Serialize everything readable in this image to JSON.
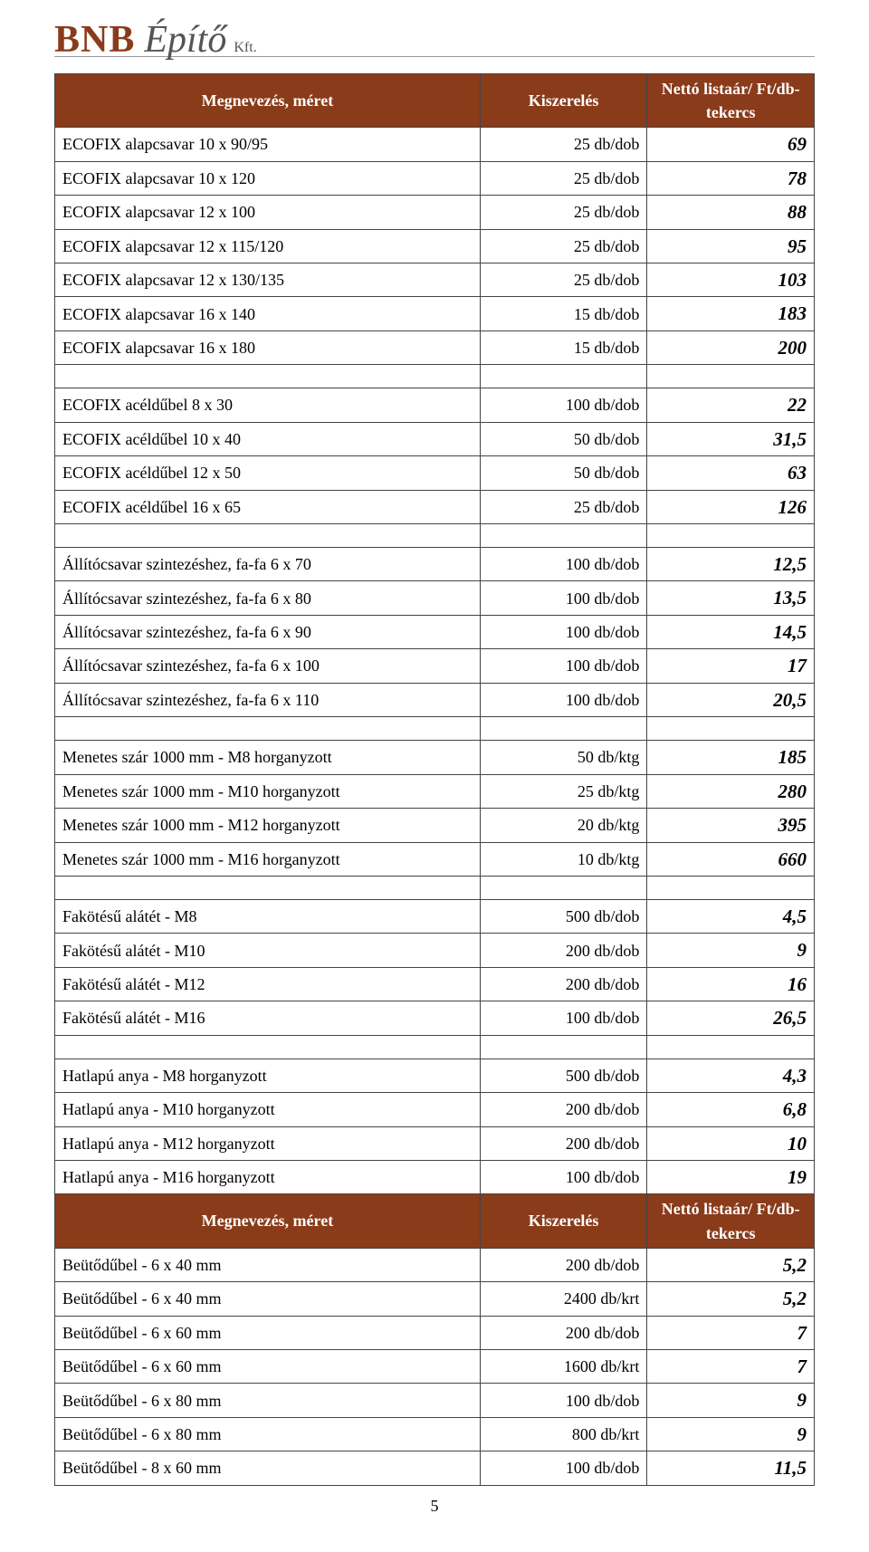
{
  "logo": {
    "bnb": "BNB",
    "epito": "Építő",
    "kft": "Kft."
  },
  "header": {
    "col1": "Megnevezés, méret",
    "col2": "Kiszerelés",
    "col3": "Nettó listaár/ Ft/db-tekercs"
  },
  "groups": [
    [
      {
        "n": "ECOFIX alapcsavar 10 x 90/95",
        "q": "25 db/dob",
        "p": "69"
      },
      {
        "n": "ECOFIX alapcsavar 10 x 120",
        "q": "25 db/dob",
        "p": "78"
      },
      {
        "n": "ECOFIX alapcsavar 12 x 100",
        "q": "25 db/dob",
        "p": "88"
      },
      {
        "n": "ECOFIX alapcsavar 12 x 115/120",
        "q": "25 db/dob",
        "p": "95"
      },
      {
        "n": "ECOFIX alapcsavar 12 x 130/135",
        "q": "25 db/dob",
        "p": "103"
      },
      {
        "n": "ECOFIX alapcsavar 16 x 140",
        "q": "15 db/dob",
        "p": "183"
      },
      {
        "n": "ECOFIX alapcsavar 16 x 180",
        "q": "15 db/dob",
        "p": "200"
      }
    ],
    [
      {
        "n": "ECOFIX acéldűbel 8 x 30",
        "q": "100 db/dob",
        "p": "22"
      },
      {
        "n": "ECOFIX acéldűbel 10 x 40",
        "q": "50 db/dob",
        "p": "31,5"
      },
      {
        "n": "ECOFIX acéldűbel 12 x 50",
        "q": "50 db/dob",
        "p": "63"
      },
      {
        "n": "ECOFIX acéldűbel 16 x 65",
        "q": "25 db/dob",
        "p": "126"
      }
    ],
    [
      {
        "n": "Állítócsavar szintezéshez, fa-fa 6 x 70",
        "q": "100 db/dob",
        "p": "12,5"
      },
      {
        "n": "Állítócsavar szintezéshez, fa-fa 6 x 80",
        "q": "100 db/dob",
        "p": "13,5"
      },
      {
        "n": "Állítócsavar szintezéshez, fa-fa 6 x 90",
        "q": "100 db/dob",
        "p": "14,5"
      },
      {
        "n": "Állítócsavar szintezéshez, fa-fa 6 x 100",
        "q": "100 db/dob",
        "p": "17"
      },
      {
        "n": "Állítócsavar szintezéshez, fa-fa 6 x 110",
        "q": "100 db/dob",
        "p": "20,5"
      }
    ],
    [
      {
        "n": "Menetes szár 1000 mm - M8 horganyzott",
        "q": "50 db/ktg",
        "p": "185"
      },
      {
        "n": "Menetes szár 1000 mm - M10 horganyzott",
        "q": "25 db/ktg",
        "p": "280"
      },
      {
        "n": "Menetes szár 1000 mm - M12 horganyzott",
        "q": "20 db/ktg",
        "p": "395"
      },
      {
        "n": "Menetes szár 1000 mm - M16 horganyzott",
        "q": "10 db/ktg",
        "p": "660"
      }
    ],
    [
      {
        "n": "Fakötésű alátét - M8",
        "q": "500 db/dob",
        "p": "4,5"
      },
      {
        "n": "Fakötésű alátét - M10",
        "q": "200 db/dob",
        "p": "9"
      },
      {
        "n": "Fakötésű alátét - M12",
        "q": "200 db/dob",
        "p": "16"
      },
      {
        "n": "Fakötésű alátét - M16",
        "q": "100 db/dob",
        "p": "26,5"
      }
    ],
    [
      {
        "n": "Hatlapú anya - M8 horganyzott",
        "q": "500 db/dob",
        "p": "4,3"
      },
      {
        "n": "Hatlapú anya - M10 horganyzott",
        "q": "200 db/dob",
        "p": "6,8"
      },
      {
        "n": "Hatlapú anya - M12 horganyzott",
        "q": "200 db/dob",
        "p": "10"
      },
      {
        "n": "Hatlapú anya - M16 horganyzott",
        "q": "100 db/dob",
        "p": "19"
      }
    ]
  ],
  "header2": {
    "col1": "Megnevezés, méret",
    "col2": "Kiszerelés",
    "col3": "Nettó listaár/ Ft/db-tekercs"
  },
  "groups2": [
    [
      {
        "n": "Beütődűbel - 6 x 40 mm",
        "q": "200 db/dob",
        "p": "5,2"
      },
      {
        "n": "Beütődűbel - 6 x 40 mm",
        "q": "2400 db/krt",
        "p": "5,2"
      },
      {
        "n": "Beütődűbel - 6 x 60 mm",
        "q": "200 db/dob",
        "p": "7"
      },
      {
        "n": "Beütődűbel - 6 x 60 mm",
        "q": "1600 db/krt",
        "p": "7"
      },
      {
        "n": "Beütődűbel - 6 x 80 mm",
        "q": "100 db/dob",
        "p": "9"
      },
      {
        "n": "Beütődűbel - 6 x 80 mm",
        "q": "800 db/krt",
        "p": "9"
      },
      {
        "n": "Beütődűbel - 8 x 60 mm",
        "q": "100 db/dob",
        "p": "11,5"
      }
    ]
  ],
  "page_number": "5"
}
